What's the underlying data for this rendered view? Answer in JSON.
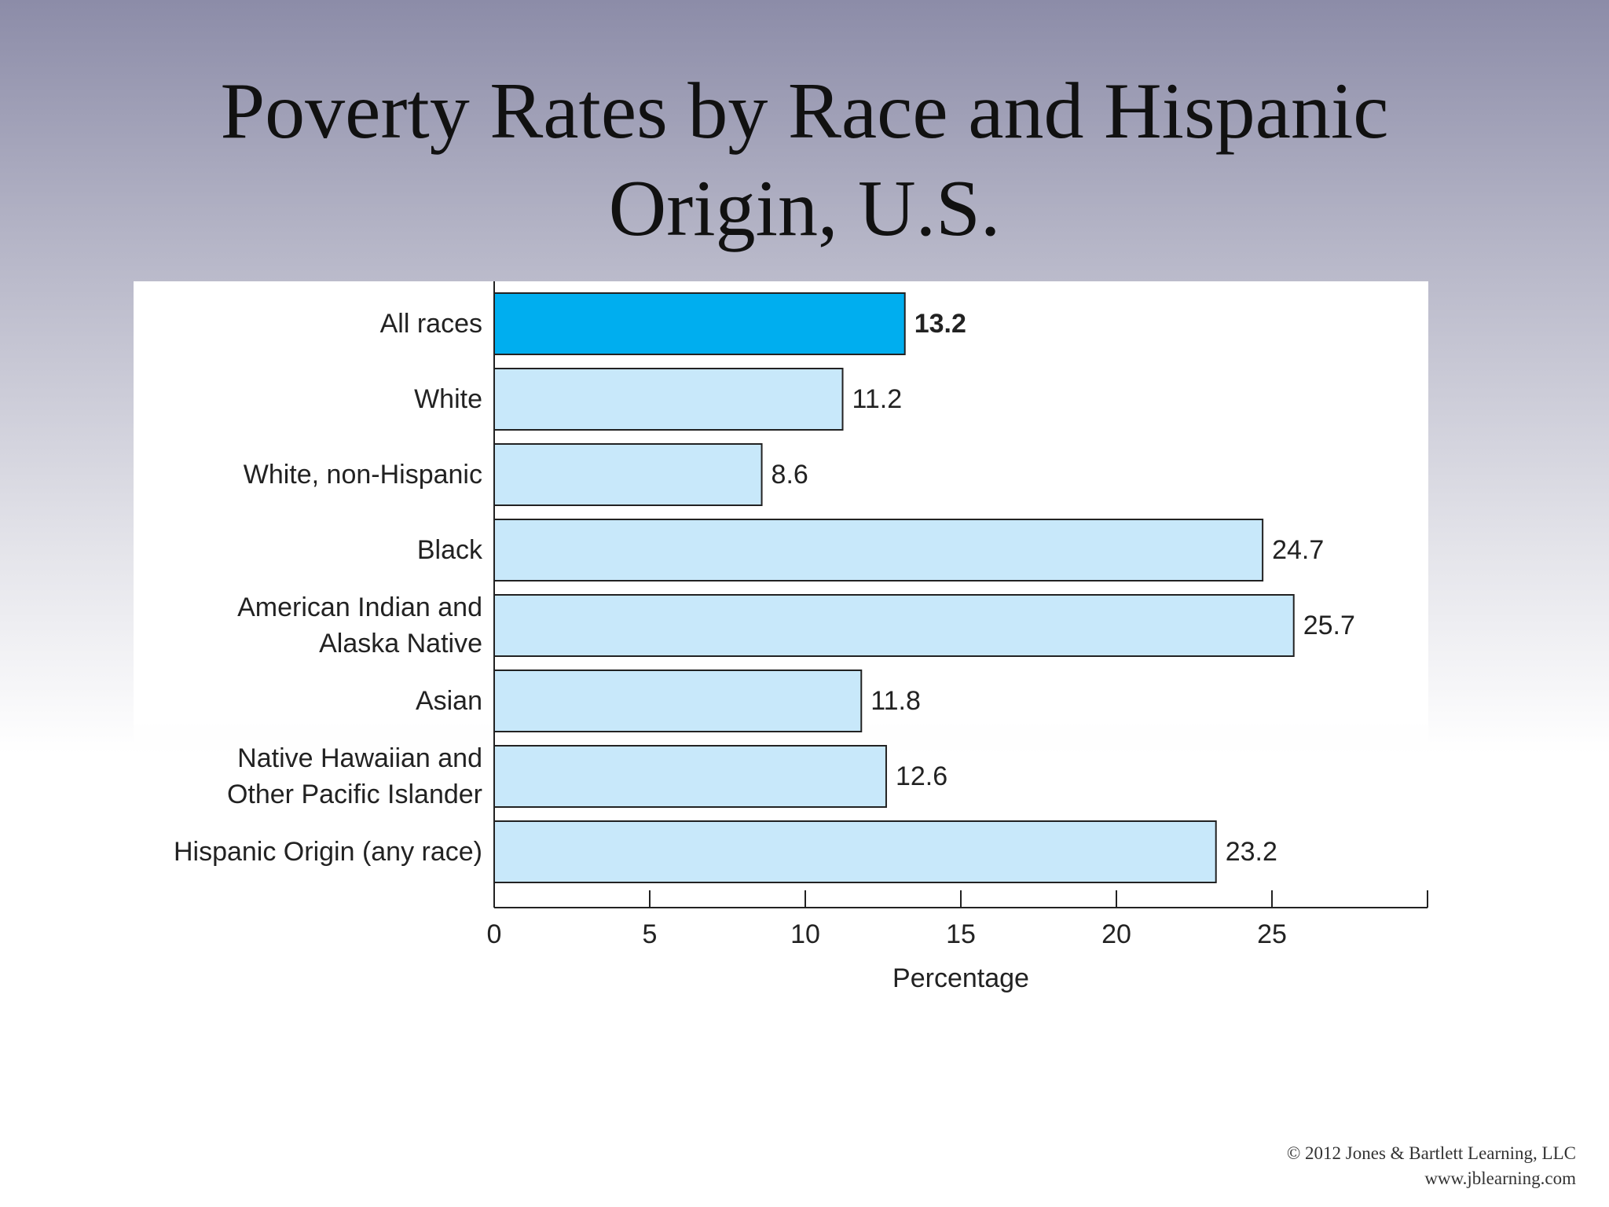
{
  "slide": {
    "title_line1": "Poverty Rates by Race and Hispanic",
    "title_line2": "Origin, U.S."
  },
  "chart_data": {
    "type": "bar",
    "orientation": "horizontal",
    "categories": [
      [
        "All races"
      ],
      [
        "White"
      ],
      [
        "White, non-Hispanic"
      ],
      [
        "Black"
      ],
      [
        "American Indian and",
        "Alaska Native"
      ],
      [
        "Asian"
      ],
      [
        "Native Hawaiian and",
        "Other Pacific Islander"
      ],
      [
        "Hispanic Origin (any race)"
      ]
    ],
    "values": [
      13.2,
      11.2,
      8.6,
      24.7,
      25.7,
      11.8,
      12.6,
      23.2
    ],
    "value_labels": [
      "13.2",
      "11.2",
      "8.6",
      "24.7",
      "25.7",
      "11.8",
      "12.6",
      "23.2"
    ],
    "highlight_index": 0,
    "xlabel": "Percentage",
    "xlim": [
      0,
      30
    ],
    "xticks": [
      0,
      5,
      10,
      15,
      20,
      25
    ],
    "grid": false,
    "colors": {
      "highlight": "#00aeef",
      "bar": "#c8e8fa",
      "stroke": "#222222"
    }
  },
  "footer": {
    "copyright": "© 2012 Jones & Bartlett Learning, LLC",
    "website": "www.jblearning.com"
  }
}
